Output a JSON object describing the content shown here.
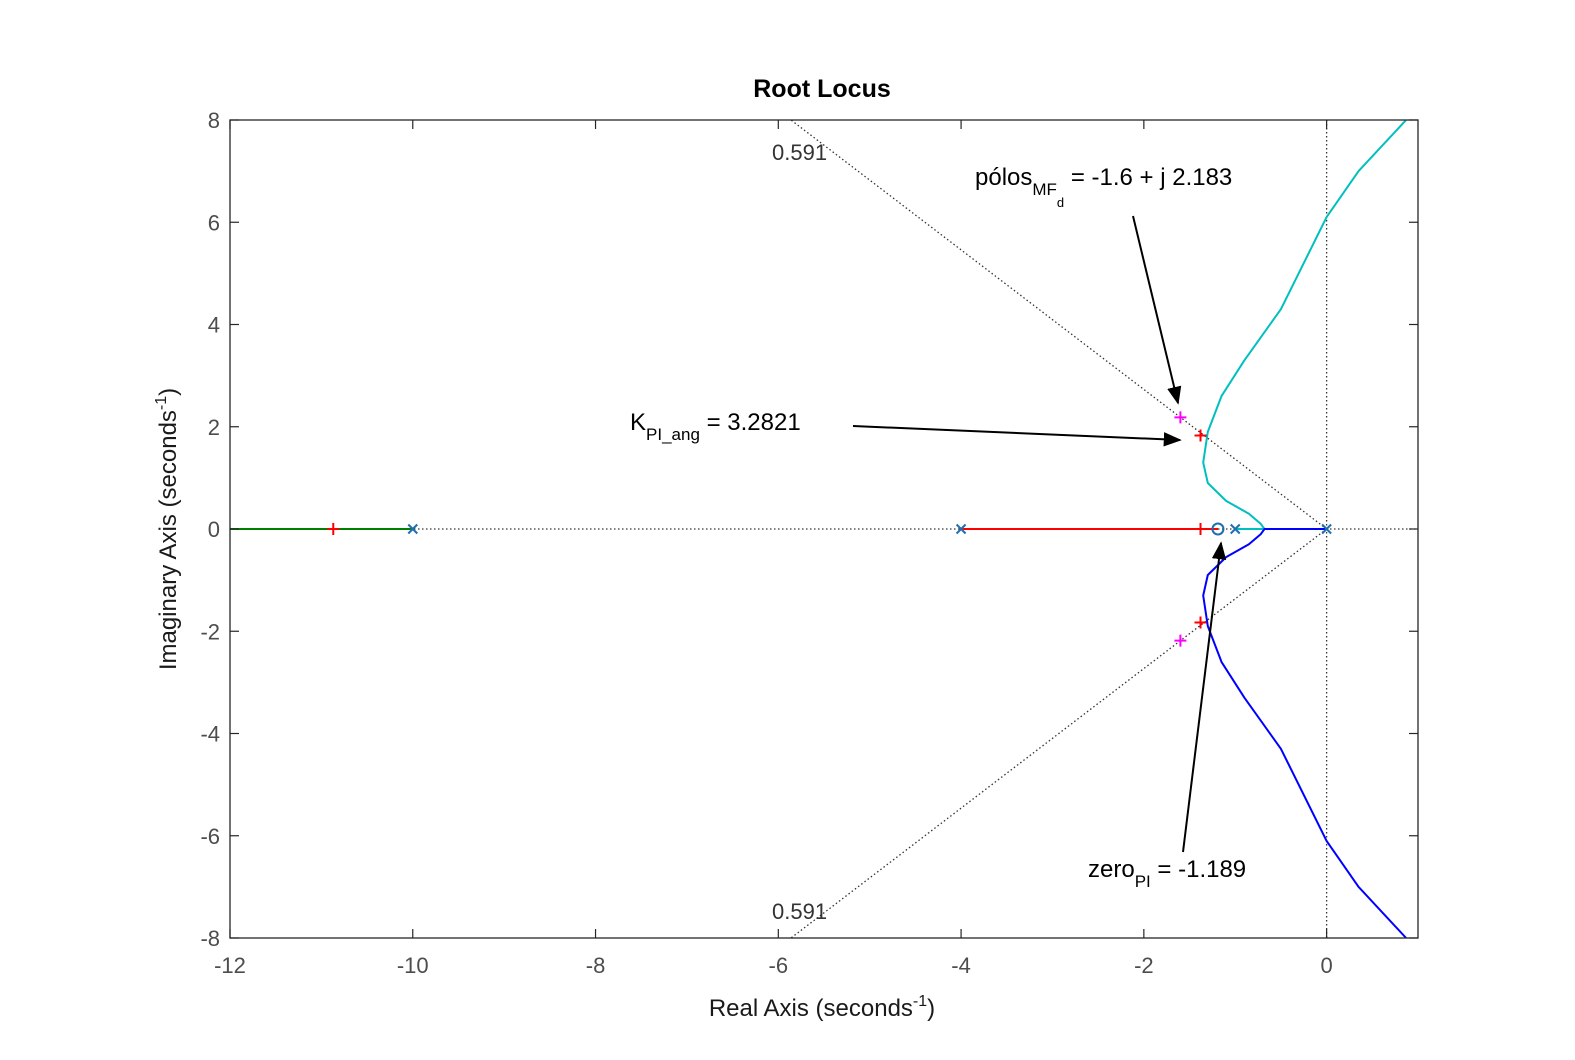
{
  "chart_data": {
    "type": "line",
    "title": "Root Locus",
    "xlabel": {
      "main": "Real Axis (seconds",
      "sup": "-1",
      "close": ")"
    },
    "ylabel": {
      "main": "Imaginary Axis (seconds",
      "sup": "-1",
      "close": ")"
    },
    "xlim": [
      -12,
      1
    ],
    "ylim": [
      -8,
      8
    ],
    "xticks": [
      -12,
      -10,
      -8,
      -6,
      -4,
      -2,
      0
    ],
    "yticks": [
      -8,
      -6,
      -4,
      -2,
      0,
      2,
      4,
      6,
      8
    ],
    "damping_ratio": 0.591,
    "damping_labels": [
      "0.591",
      "0.591"
    ],
    "open_loop_poles": [
      [
        -10,
        0
      ],
      [
        -4,
        0
      ],
      [
        -1,
        0
      ],
      [
        0,
        0
      ]
    ],
    "zeros": [
      [
        -1.189,
        0
      ]
    ],
    "branches": [
      {
        "color": "#008000",
        "points": [
          [
            -10,
            0
          ],
          [
            -12,
            0
          ]
        ]
      },
      {
        "color": "#ff0000",
        "points": [
          [
            -4,
            0
          ],
          [
            -1.189,
            0
          ]
        ]
      },
      {
        "color": "#00bfbf",
        "points": [
          [
            -1,
            0
          ],
          [
            -0.68,
            0
          ],
          [
            -0.72,
            0.1
          ],
          [
            -0.85,
            0.3
          ],
          [
            -1.1,
            0.55
          ],
          [
            -1.3,
            0.9
          ],
          [
            -1.35,
            1.3
          ],
          [
            -1.3,
            1.9
          ],
          [
            -1.15,
            2.6
          ],
          [
            -0.9,
            3.3
          ],
          [
            -0.5,
            4.3
          ],
          [
            0,
            6.1
          ],
          [
            0.35,
            7
          ],
          [
            0.87,
            8
          ]
        ]
      },
      {
        "color": "#0000ff",
        "points": [
          [
            0,
            0
          ],
          [
            -0.68,
            0
          ],
          [
            -0.72,
            -0.1
          ],
          [
            -0.85,
            -0.3
          ],
          [
            -1.1,
            -0.55
          ],
          [
            -1.3,
            -0.9
          ],
          [
            -1.35,
            -1.3
          ],
          [
            -1.3,
            -1.9
          ],
          [
            -1.15,
            -2.6
          ],
          [
            -0.9,
            -3.3
          ],
          [
            -0.5,
            -4.3
          ],
          [
            0,
            -6.1
          ],
          [
            0.35,
            -7
          ],
          [
            0.87,
            -8
          ]
        ]
      }
    ],
    "red_markers": [
      [
        -10.87,
        0
      ],
      [
        -1.38,
        0
      ],
      [
        -1.38,
        1.83
      ],
      [
        -1.38,
        -1.83
      ]
    ],
    "magenta_markers": [
      [
        -1.6,
        2.183
      ],
      [
        -1.6,
        -2.183
      ]
    ],
    "annotations": {
      "poles": {
        "main": "pólos",
        "sub": "MF",
        "subsub": "d",
        "rest": " = -1.6 + j 2.183"
      },
      "gain": {
        "main": "K",
        "sub": "PI_ang",
        "rest": " = 3.2821"
      },
      "zero": {
        "main": "zero",
        "sub": "PI",
        "rest": " = -1.189"
      }
    },
    "grid": false
  }
}
